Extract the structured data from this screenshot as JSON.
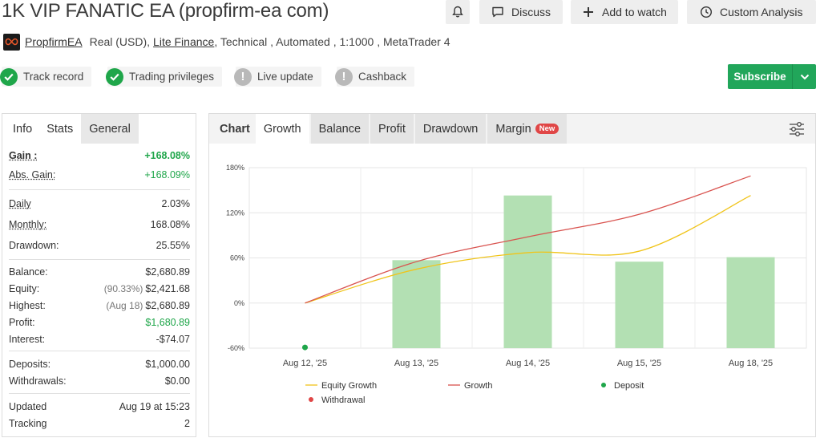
{
  "header": {
    "title": "1K VIP FANATIC EA (propfirm-ea com)",
    "discuss": "Discuss",
    "add_to_watch": "Add to watch",
    "custom_analysis": "Custom Analysis"
  },
  "info": {
    "author": "PropfirmEA",
    "account": "Real (USD),",
    "broker": "Lite Finance",
    "rest": ", Technical , Automated , 1:1000 , MetaTrader 4"
  },
  "badges": {
    "track_record": "Track record",
    "trading_privileges": "Trading privileges",
    "live_update": "Live update",
    "cashback": "Cashback"
  },
  "subscribe": {
    "label": "Subscribe"
  },
  "left_tabs": {
    "info": "Info",
    "stats": "Stats",
    "general": "General"
  },
  "stats": {
    "gain": {
      "label": "Gain :",
      "value": "+168.08%"
    },
    "abs_gain": {
      "label": "Abs. Gain:",
      "value": "+168.09%"
    },
    "daily": {
      "label": "Daily",
      "value": "2.03%"
    },
    "monthly": {
      "label": "Monthly:",
      "value": "168.08%"
    },
    "drawdown": {
      "label": "Drawdown:",
      "value": "25.55%"
    },
    "balance": {
      "label": "Balance:",
      "value": "$2,680.89"
    },
    "equity": {
      "label": "Equity:",
      "note": "(90.33%)",
      "value": "$2,421.68"
    },
    "highest": {
      "label": "Highest:",
      "note": "(Aug 18)",
      "value": "$2,680.89"
    },
    "profit": {
      "label": "Profit:",
      "value": "$1,680.89"
    },
    "interest": {
      "label": "Interest:",
      "value": "-$74.07"
    },
    "deposits": {
      "label": "Deposits:",
      "value": "$1,000.00"
    },
    "withdrawals": {
      "label": "Withdrawals:",
      "value": "$0.00"
    },
    "updated": {
      "label": "Updated",
      "value": "Aug 19 at 15:23"
    },
    "tracking": {
      "label": "Tracking",
      "value": "2"
    }
  },
  "chart_tabs": {
    "chart": "Chart",
    "growth": "Growth",
    "balance": "Balance",
    "profit": "Profit",
    "drawdown": "Drawdown",
    "margin": "Margin",
    "new": "New"
  },
  "colors": {
    "green": "#1fa64a",
    "subscribe": "#21a65a",
    "bar": "#b3e0b3",
    "growth_line": "#d9534f",
    "equity_line": "#f0c419",
    "deposit": "#1fa64a",
    "withdrawal": "#e04646"
  },
  "chart_data": {
    "type": "bar",
    "categories": [
      "Aug 12, '25",
      "Aug 13, '25",
      "Aug 14, '25",
      "Aug 15, '25",
      "Aug 18, '25"
    ],
    "ytick_labels": [
      "180%",
      "120%",
      "60%",
      "0%",
      "-60%"
    ],
    "yticks": [
      180,
      120,
      60,
      0,
      -60
    ],
    "ylim": [
      -60,
      180
    ],
    "series": [
      {
        "name": "Equity Growth",
        "kind": "line",
        "values": [
          0,
          45,
          67,
          69,
          143
        ]
      },
      {
        "name": "Growth",
        "kind": "line",
        "values": [
          0,
          55,
          88,
          118,
          169
        ]
      },
      {
        "name": "Deposit",
        "kind": "points",
        "values": [
          -59,
          null,
          null,
          null,
          null
        ]
      },
      {
        "name": "Withdrawal",
        "kind": "points",
        "values": [
          null,
          null,
          null,
          null,
          null
        ]
      }
    ],
    "bars": [
      null,
      57,
      143,
      55,
      61
    ],
    "legend": [
      "Equity Growth",
      "Growth",
      "Deposit",
      "Withdrawal"
    ],
    "grid": true,
    "legend_position": "bottom"
  }
}
